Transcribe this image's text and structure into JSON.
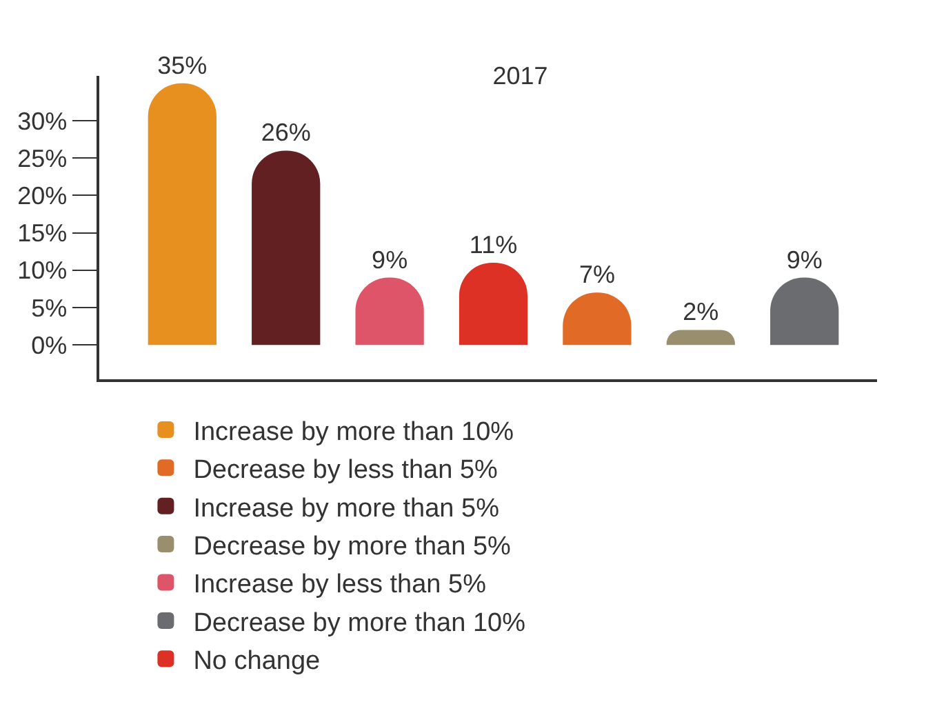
{
  "chart_data": {
    "type": "bar",
    "title": "2017",
    "categories": [
      null,
      null,
      null,
      null,
      null,
      null,
      null
    ],
    "series": [
      {
        "name": "Increase by more than 10%",
        "color": "#e8901f",
        "values": [
          35,
          null,
          null,
          null,
          null,
          null,
          null
        ],
        "value_labels": [
          "35%",
          null,
          null,
          null,
          null,
          null,
          null
        ]
      },
      {
        "name": "Increase by more than 5%",
        "color": "#622022",
        "values": [
          null,
          26,
          null,
          null,
          null,
          null,
          null
        ],
        "value_labels": [
          null,
          "26%",
          null,
          null,
          null,
          null,
          null
        ]
      },
      {
        "name": "Increase by less than 5%",
        "color": "#de5468",
        "values": [
          null,
          null,
          9,
          null,
          null,
          null,
          null
        ],
        "value_labels": [
          null,
          null,
          "9%",
          null,
          null,
          null,
          null
        ]
      },
      {
        "name": "No change",
        "color": "#dd3126",
        "values": [
          null,
          null,
          null,
          11,
          null,
          null,
          null
        ],
        "value_labels": [
          null,
          null,
          null,
          "11%",
          null,
          null,
          null
        ]
      },
      {
        "name": "Decrease by less than 5%",
        "color": "#e06a26",
        "values": [
          null,
          null,
          null,
          null,
          7,
          null,
          null
        ],
        "value_labels": [
          null,
          null,
          null,
          null,
          "7%",
          null,
          null
        ]
      },
      {
        "name": "Decrease by more than 5%",
        "color": "#998f6e",
        "values": [
          null,
          null,
          null,
          null,
          null,
          2,
          null
        ],
        "value_labels": [
          null,
          null,
          null,
          null,
          null,
          "2%",
          null
        ]
      },
      {
        "name": "Decrease by more than 10%",
        "color": "#6b6c70",
        "values": [
          null,
          null,
          null,
          null,
          null,
          null,
          9
        ],
        "value_labels": [
          null,
          null,
          null,
          null,
          null,
          null,
          "9%"
        ]
      }
    ],
    "ylim": [
      -4.6,
      36
    ],
    "yticks": [
      {
        "value": 0,
        "label": "0%"
      },
      {
        "value": 5,
        "label": "5%"
      },
      {
        "value": 10,
        "label": "10%"
      },
      {
        "value": 15,
        "label": "15%"
      },
      {
        "value": 20,
        "label": "20%"
      },
      {
        "value": 25,
        "label": "25%"
      },
      {
        "value": 30,
        "label": "30%"
      }
    ],
    "grid": false,
    "legend": "bottom"
  }
}
